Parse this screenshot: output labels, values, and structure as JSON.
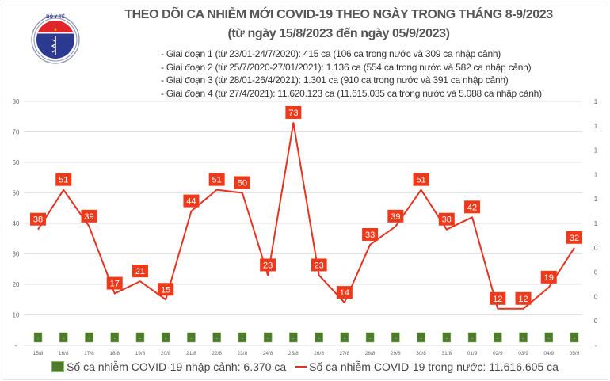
{
  "logo": {
    "text_top": "BỘ Y TẾ",
    "text_bottom": "MINISTRY OF HEALTH"
  },
  "header": {
    "title": "THEO DÕI CA NHIỄM MỚI COVID-19 THEO NGÀY TRONG THÁNG 8-9/2023",
    "subtitle": "(từ ngày 15/8/2023 đến ngày 05/9/2023)",
    "notes": [
      "- Giai đoạn 1 (từ 23/01-24/7/2020): 415 ca (106 ca trong nước và 309 ca nhập cảnh)",
      "- Giai đoạn 2 (từ 25/7/2020-27/01/2021): 1.136 ca (554 ca trong nước và 582 ca nhập cảnh)",
      "- Giai đoạn 3 (từ 28/01-26/4/2021): 1.301 ca (910 ca trong nước và 391 ca nhập cảnh)",
      "- Giai đoạn 4 (từ 27/4/2021): 11.620.123 ca (11.615.035 ca trong nước và 5.088 ca nhập cảnh)"
    ]
  },
  "chart_data": {
    "type": "bar+line",
    "categories": [
      "15/8",
      "16/8",
      "17/8",
      "18/8",
      "19/8",
      "20/8",
      "21/8",
      "22/8",
      "23/8",
      "24/8",
      "25/8",
      "26/8",
      "27/8",
      "28/8",
      "29/8",
      "30/8",
      "31/8",
      "01/9",
      "02/9",
      "03/9",
      "04/9",
      "05/9"
    ],
    "series": [
      {
        "name": "Số ca nhiễm COVID-19 nhập cảnh: 6.370 ca",
        "type": "bar",
        "axis": "right",
        "values": [
          0,
          0,
          0,
          0,
          0,
          0,
          0,
          0,
          0,
          0,
          0,
          0,
          0,
          0,
          0,
          0,
          0,
          0,
          0,
          0,
          0,
          0
        ],
        "data_label": "-",
        "color": "#4f7a2e"
      },
      {
        "name": "Số ca nhiễm COVID-19 trong nước: 11.616.605 ca",
        "type": "line",
        "axis": "left",
        "values": [
          38,
          51,
          39,
          17,
          21,
          15,
          44,
          51,
          50,
          23,
          73,
          23,
          14,
          33,
          39,
          51,
          38,
          42,
          12,
          12,
          19,
          32
        ],
        "color": "#e53322"
      }
    ],
    "left_ticks": [
      "-",
      "10",
      "20",
      "30",
      "40",
      "50",
      "60",
      "70",
      "80"
    ],
    "right_ticks": [
      "-",
      "0",
      "0",
      "0",
      "0",
      "1",
      "1",
      "1",
      "1",
      "1",
      "1"
    ],
    "ylim": [
      0,
      80
    ],
    "grid": true,
    "legend": "bottom"
  }
}
